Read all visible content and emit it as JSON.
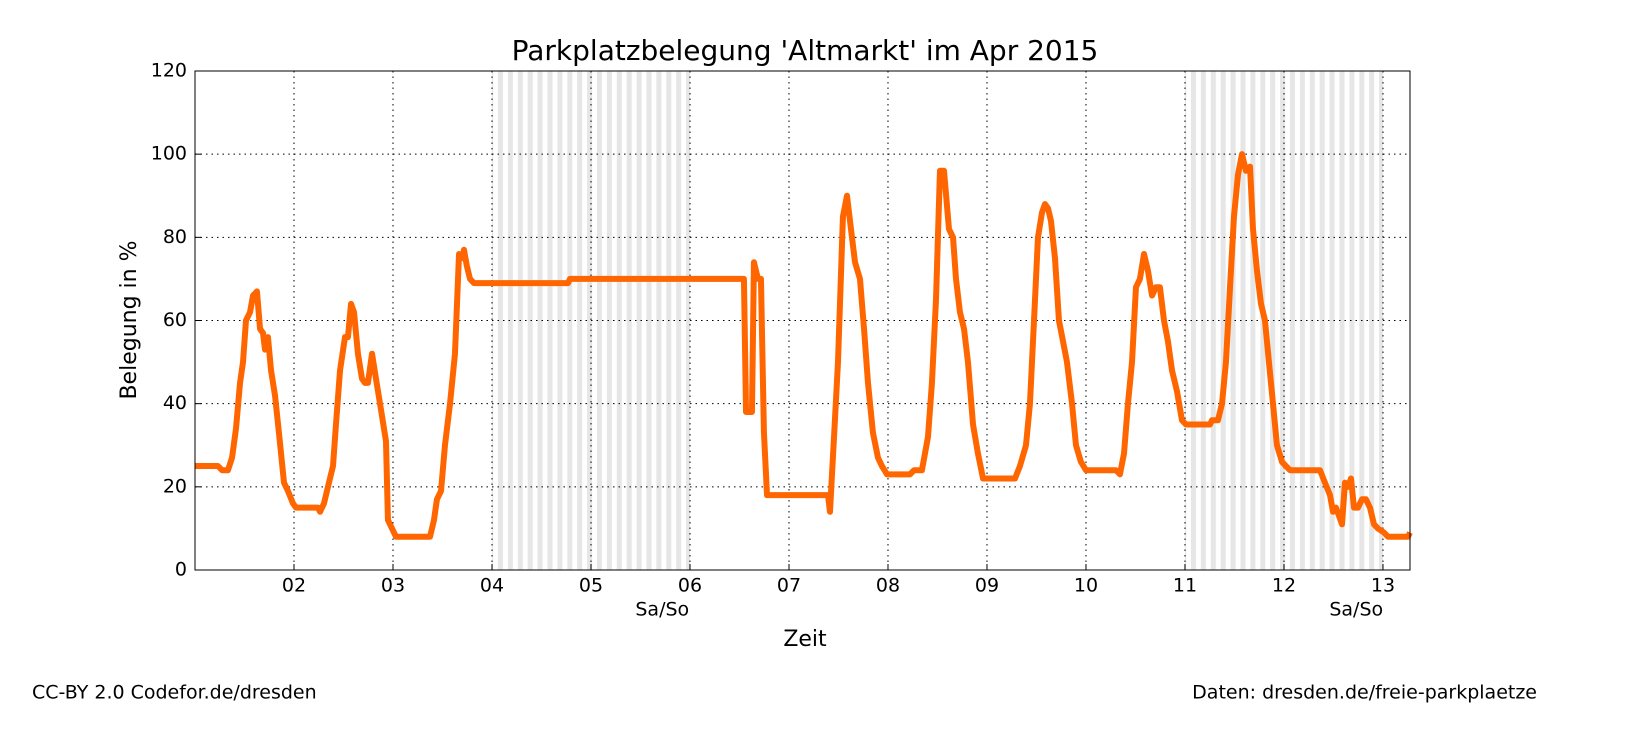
{
  "chart_data": {
    "type": "line",
    "title": "Parkplatzbelegung 'Altmarkt' im Apr 2015",
    "x_label": "Zeit",
    "y_label": "Belegung in %",
    "xlim": [
      1,
      13.273
    ],
    "ylim": [
      0,
      120
    ],
    "xticks": [
      {
        "value": 2,
        "label": "02"
      },
      {
        "value": 3,
        "label": "03"
      },
      {
        "value": 4,
        "label": "04"
      },
      {
        "value": 5,
        "label": "05"
      },
      {
        "value": 6,
        "label": "06"
      },
      {
        "value": 7,
        "label": "07"
      },
      {
        "value": 8,
        "label": "08"
      },
      {
        "value": 9,
        "label": "09"
      },
      {
        "value": 10,
        "label": "10"
      },
      {
        "value": 11,
        "label": "11"
      },
      {
        "value": 12,
        "label": "12"
      },
      {
        "value": 13,
        "label": "13"
      }
    ],
    "yticks": [
      0,
      20,
      40,
      60,
      80,
      100,
      120
    ],
    "grid": true,
    "weekend_spans": [
      [
        4,
        6
      ],
      [
        11,
        13
      ]
    ],
    "annotations": [
      {
        "text": "Sa/So",
        "x": 5.72
      },
      {
        "text": "Sa/So",
        "x": 12.73
      }
    ],
    "x": [
      1.0,
      1.232,
      1.273,
      1.333,
      1.374,
      1.414,
      1.455,
      1.485,
      1.515,
      1.556,
      1.586,
      1.626,
      1.657,
      1.687,
      1.707,
      1.737,
      1.768,
      1.808,
      1.848,
      1.899,
      1.939,
      1.99,
      2.02,
      2.242,
      2.263,
      2.303,
      2.343,
      2.394,
      2.424,
      2.465,
      2.515,
      2.545,
      2.576,
      2.606,
      2.646,
      2.687,
      2.717,
      2.747,
      2.788,
      2.828,
      2.869,
      2.929,
      2.949,
      2.99,
      3.03,
      3.374,
      3.414,
      3.444,
      3.485,
      3.525,
      3.576,
      3.626,
      3.667,
      3.697,
      3.717,
      3.747,
      3.778,
      3.818,
      4.768,
      4.788,
      6.545,
      6.566,
      6.626,
      6.646,
      6.687,
      6.717,
      6.747,
      6.778,
      7.394,
      7.414,
      7.455,
      7.495,
      7.545,
      7.586,
      7.626,
      7.667,
      7.717,
      7.758,
      7.798,
      7.848,
      7.899,
      7.939,
      7.99,
      8.222,
      8.263,
      8.343,
      8.404,
      8.444,
      8.485,
      8.525,
      8.566,
      8.616,
      8.657,
      8.687,
      8.727,
      8.768,
      8.808,
      8.859,
      8.909,
      8.96,
      9.283,
      9.333,
      9.394,
      9.434,
      9.475,
      9.515,
      9.556,
      9.586,
      9.616,
      9.646,
      9.687,
      9.727,
      9.768,
      9.808,
      9.859,
      9.899,
      9.949,
      10.0,
      10.303,
      10.343,
      10.384,
      10.424,
      10.465,
      10.505,
      10.545,
      10.586,
      10.626,
      10.667,
      10.707,
      10.747,
      10.788,
      10.828,
      10.869,
      10.919,
      10.97,
      11.01,
      11.253,
      11.273,
      11.333,
      11.374,
      11.414,
      11.455,
      11.495,
      11.535,
      11.576,
      11.616,
      11.657,
      11.687,
      11.727,
      11.768,
      11.808,
      11.848,
      11.889,
      11.929,
      11.98,
      12.02,
      12.061,
      12.364,
      12.414,
      12.465,
      12.495,
      12.525,
      12.556,
      12.586,
      12.616,
      12.646,
      12.677,
      12.707,
      12.747,
      12.788,
      12.828,
      12.869,
      12.909,
      12.949,
      13.01,
      13.051,
      13.253,
      13.273
    ],
    "series": [
      {
        "name": "Altmarkt",
        "color": "#ff6600",
        "values": [
          25,
          25,
          24,
          24,
          27,
          34,
          45,
          50,
          60,
          62,
          66,
          67,
          58,
          57,
          53,
          56,
          48,
          42,
          33,
          21,
          19,
          16,
          15,
          15,
          14,
          16,
          20,
          25,
          35,
          48,
          56,
          56,
          64,
          62,
          52,
          46,
          45,
          45,
          52,
          46,
          40,
          31,
          12,
          10,
          8,
          8,
          12,
          17,
          19,
          30,
          40,
          52,
          76,
          75,
          77,
          73,
          70,
          69,
          69,
          70,
          70,
          38,
          38,
          74,
          70,
          70,
          33,
          18,
          18,
          14,
          32,
          50,
          85,
          90,
          82,
          74,
          70,
          58,
          45,
          33,
          27,
          25,
          23,
          23,
          24,
          24,
          32,
          45,
          65,
          96,
          96,
          82,
          80,
          70,
          62,
          58,
          50,
          35,
          28,
          22,
          22,
          25,
          30,
          40,
          60,
          80,
          86,
          88,
          87,
          84,
          75,
          60,
          55,
          50,
          40,
          30,
          26,
          24,
          24,
          23,
          28,
          40,
          50,
          68,
          70,
          76,
          72,
          66,
          68,
          68,
          60,
          55,
          48,
          43,
          36,
          35,
          35,
          36,
          36,
          40,
          50,
          68,
          85,
          95,
          100,
          96,
          97,
          82,
          72,
          64,
          60,
          50,
          40,
          30,
          26,
          25,
          24,
          24,
          21,
          18,
          14,
          15,
          13,
          11,
          21,
          20,
          22,
          15,
          15,
          17,
          17,
          15,
          11,
          10,
          9,
          8,
          8,
          9
        ]
      }
    ],
    "footer_left": "CC-BY 2.0 Codefor.de/dresden",
    "footer_right": "Daten: dresden.de/freie-parkplaetze"
  }
}
